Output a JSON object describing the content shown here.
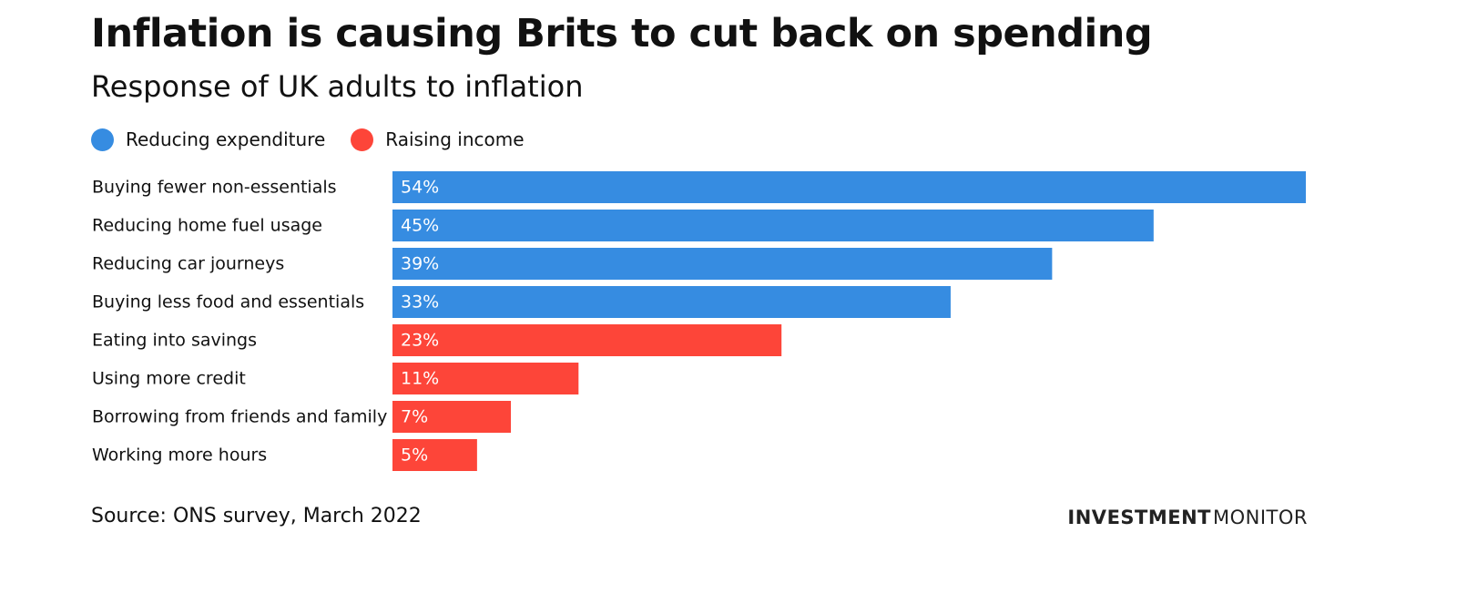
{
  "header": {
    "title": "Inflation is causing Brits to cut back on spending",
    "subtitle": "Response of UK adults to inflation"
  },
  "legend": [
    {
      "label": "Reducing expenditure",
      "color": "#368CE1"
    },
    {
      "label": "Raising income",
      "color": "#FD4539"
    }
  ],
  "chart_data": {
    "type": "bar",
    "orientation": "horizontal",
    "title": "Inflation is causing Brits to cut back on spending",
    "subtitle": "Response of UK adults to inflation",
    "xlabel": "",
    "ylabel": "",
    "xlim": [
      0,
      54
    ],
    "grid": false,
    "legend_position": "top-left",
    "categories": [
      "Buying fewer non-essentials",
      "Reducing home fuel usage",
      "Reducing car journeys",
      "Buying less food and essentials",
      "Eating into savings",
      "Using more credit",
      "Borrowing from friends and family",
      "Working more hours"
    ],
    "values": [
      54,
      45,
      39,
      33,
      23,
      11,
      7,
      5
    ],
    "value_labels": [
      "54%",
      "45%",
      "39%",
      "33%",
      "23%",
      "11%",
      "7%",
      "5%"
    ],
    "groups": [
      "Reducing expenditure",
      "Reducing expenditure",
      "Reducing expenditure",
      "Reducing expenditure",
      "Raising income",
      "Raising income",
      "Raising income",
      "Raising income"
    ],
    "colors": {
      "Reducing expenditure": "#368CE1",
      "Raising income": "#FD4539"
    }
  },
  "footer": {
    "source": "Source: ONS survey, March 2022",
    "brand_bold": "INVESTMENT",
    "brand_light": "MONITOR"
  }
}
